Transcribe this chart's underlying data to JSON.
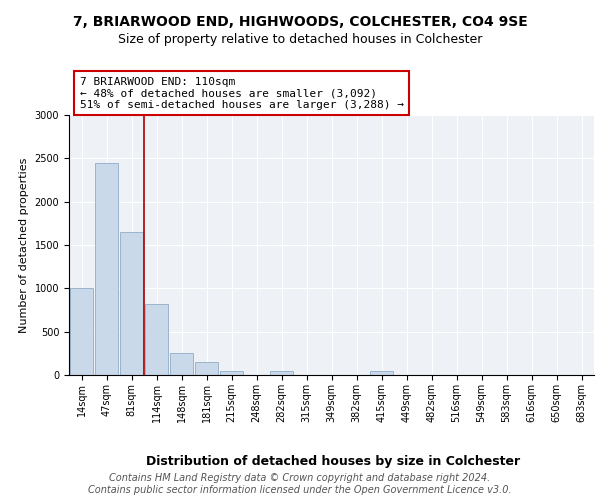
{
  "title1": "7, BRIARWOOD END, HIGHWOODS, COLCHESTER, CO4 9SE",
  "title2": "Size of property relative to detached houses in Colchester",
  "xlabel": "Distribution of detached houses by size in Colchester",
  "ylabel": "Number of detached properties",
  "categories": [
    "14sqm",
    "47sqm",
    "81sqm",
    "114sqm",
    "148sqm",
    "181sqm",
    "215sqm",
    "248sqm",
    "282sqm",
    "315sqm",
    "349sqm",
    "382sqm",
    "415sqm",
    "449sqm",
    "482sqm",
    "516sqm",
    "549sqm",
    "583sqm",
    "616sqm",
    "650sqm",
    "683sqm"
  ],
  "values": [
    1000,
    2450,
    1650,
    820,
    250,
    150,
    50,
    0,
    50,
    0,
    0,
    0,
    50,
    0,
    0,
    0,
    0,
    0,
    0,
    0,
    0
  ],
  "bar_color": "#c9d9ea",
  "bar_edge_color": "#9ab4cc",
  "vline_color": "#aa0000",
  "annotation_text": "7 BRIARWOOD END: 110sqm\n← 48% of detached houses are smaller (3,092)\n51% of semi-detached houses are larger (3,288) →",
  "annotation_box_edge_color": "#cc0000",
  "ylim": [
    0,
    3000
  ],
  "yticks": [
    0,
    500,
    1000,
    1500,
    2000,
    2500,
    3000
  ],
  "bg_color": "#eef2f7",
  "footer_text": "Contains HM Land Registry data © Crown copyright and database right 2024.\nContains public sector information licensed under the Open Government Licence v3.0.",
  "title_fontsize": 10,
  "subtitle_fontsize": 9,
  "xlabel_fontsize": 9,
  "ylabel_fontsize": 8,
  "tick_fontsize": 7,
  "footer_fontsize": 7,
  "ann_fontsize": 8
}
